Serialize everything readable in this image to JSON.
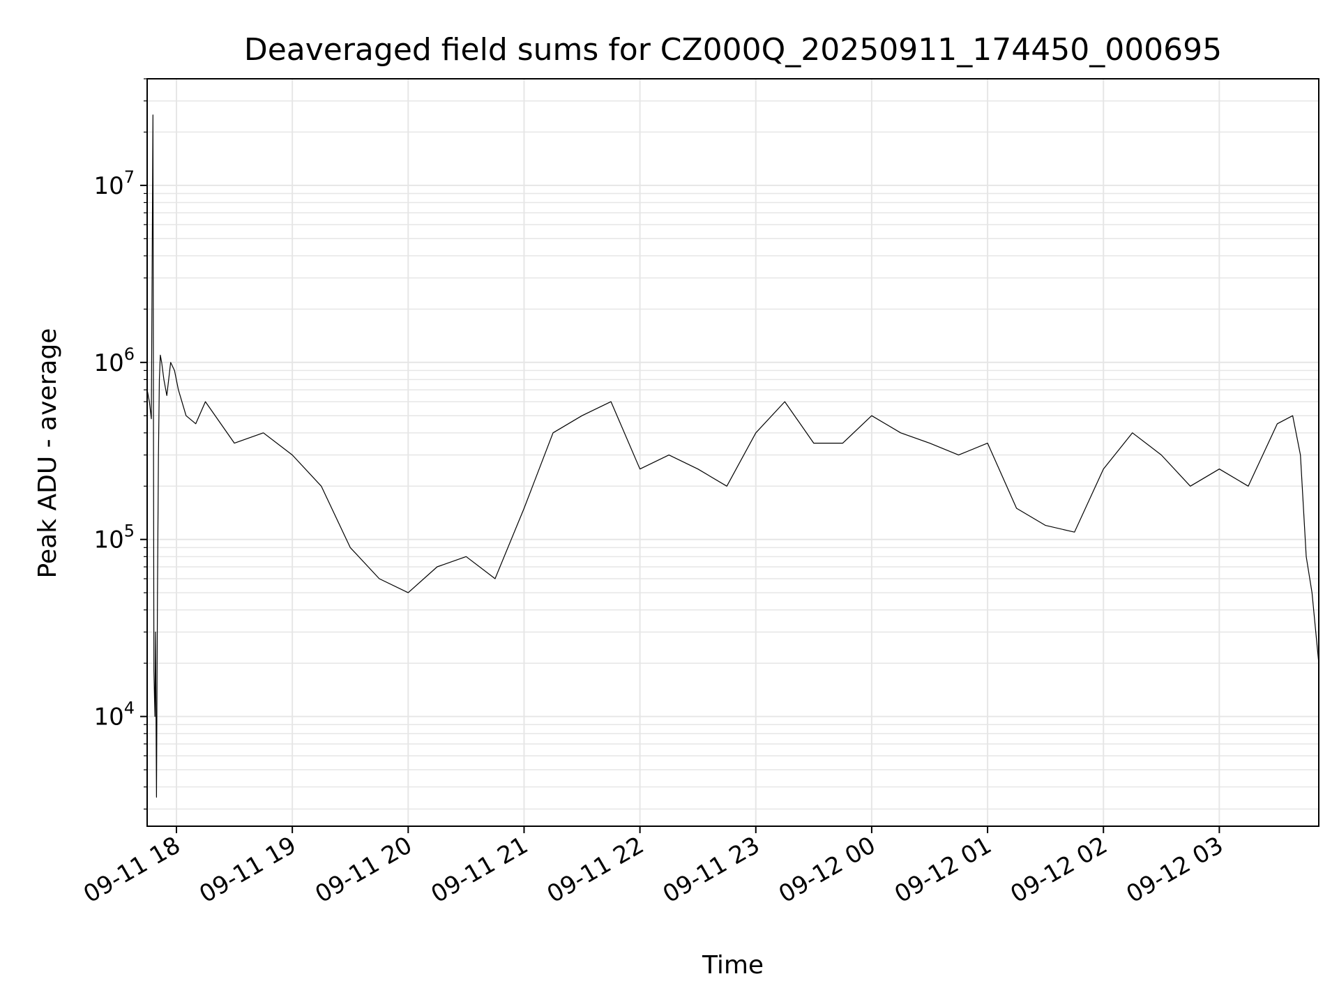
{
  "chart_data": {
    "type": "line",
    "title": "Deaveraged field sums for CZ000Q_20250911_174450_000695",
    "xlabel": "Time",
    "ylabel": "Peak ADU - average",
    "y_scale": "log",
    "y_tick_labels": [
      {
        "base": "10",
        "exp": "4",
        "value": 10000
      },
      {
        "base": "10",
        "exp": "5",
        "value": 100000
      },
      {
        "base": "10",
        "exp": "6",
        "value": 1000000
      },
      {
        "base": "10",
        "exp": "7",
        "value": 10000000
      }
    ],
    "ylim": [
      2400,
      40000000
    ],
    "xlim": [
      "2025-09-11 17:44:50",
      "2025-09-12 03:51:30"
    ],
    "x_tick_labels": [
      {
        "label": "09-11 18",
        "time": "2025-09-11 18:00:00"
      },
      {
        "label": "09-11 19",
        "time": "2025-09-11 19:00:00"
      },
      {
        "label": "09-11 20",
        "time": "2025-09-11 20:00:00"
      },
      {
        "label": "09-11 21",
        "time": "2025-09-11 21:00:00"
      },
      {
        "label": "09-11 22",
        "time": "2025-09-11 22:00:00"
      },
      {
        "label": "09-11 23",
        "time": "2025-09-11 23:00:00"
      },
      {
        "label": "09-12 00",
        "time": "2025-09-12 00:00:00"
      },
      {
        "label": "09-12 01",
        "time": "2025-09-12 01:00:00"
      },
      {
        "label": "09-12 02",
        "time": "2025-09-12 02:00:00"
      },
      {
        "label": "09-12 03",
        "time": "2025-09-12 03:00:00"
      }
    ],
    "grid": true,
    "legend": "none",
    "colors": {
      "line": "#000000",
      "grid": "#e6e6e6",
      "axes": "#000000",
      "background": "#ffffff"
    },
    "series": [
      {
        "x": [
          "2025-09-11 17:44:50",
          "2025-09-11 17:46:00",
          "2025-09-11 17:47:00",
          "2025-09-11 17:47:50",
          "2025-09-11 17:48:20",
          "2025-09-11 17:48:50",
          "2025-09-11 17:49:10",
          "2025-09-11 17:49:40",
          "2025-09-11 17:50:10",
          "2025-09-11 17:50:40",
          "2025-09-11 17:51:10",
          "2025-09-11 17:51:40",
          "2025-09-11 17:52:20",
          "2025-09-11 17:53:30",
          "2025-09-11 17:55:00",
          "2025-09-11 17:57:00",
          "2025-09-11 17:59:00",
          "2025-09-11 18:01:00",
          "2025-09-11 18:05:00",
          "2025-09-11 18:10:00",
          "2025-09-11 18:15:00",
          "2025-09-11 18:30:00",
          "2025-09-11 18:45:00",
          "2025-09-11 19:00:00",
          "2025-09-11 19:15:00",
          "2025-09-11 19:30:00",
          "2025-09-11 19:45:00",
          "2025-09-11 20:00:00",
          "2025-09-11 20:15:00",
          "2025-09-11 20:30:00",
          "2025-09-11 20:45:00",
          "2025-09-11 21:00:00",
          "2025-09-11 21:15:00",
          "2025-09-11 21:30:00",
          "2025-09-11 21:45:00",
          "2025-09-11 22:00:00",
          "2025-09-11 22:15:00",
          "2025-09-11 22:30:00",
          "2025-09-11 22:45:00",
          "2025-09-11 23:00:00",
          "2025-09-11 23:15:00",
          "2025-09-11 23:30:00",
          "2025-09-11 23:45:00",
          "2025-09-12 00:00:00",
          "2025-09-12 00:15:00",
          "2025-09-12 00:30:00",
          "2025-09-12 00:45:00",
          "2025-09-12 01:00:00",
          "2025-09-12 01:15:00",
          "2025-09-12 01:30:00",
          "2025-09-12 01:45:00",
          "2025-09-12 02:00:00",
          "2025-09-12 02:15:00",
          "2025-09-12 02:30:00",
          "2025-09-12 02:45:00",
          "2025-09-12 03:00:00",
          "2025-09-12 03:15:00",
          "2025-09-12 03:30:00",
          "2025-09-12 03:38:00",
          "2025-09-12 03:42:00",
          "2025-09-12 03:45:00",
          "2025-09-12 03:48:00",
          "2025-09-12 03:51:30"
        ],
        "y": [
          700000,
          600000,
          480000,
          25000000,
          18000,
          10000,
          30000,
          3500,
          50000,
          300000,
          800000,
          1100000,
          1000000,
          800000,
          650000,
          1000000,
          900000,
          700000,
          500000,
          450000,
          600000,
          350000,
          400000,
          300000,
          200000,
          90000,
          60000,
          50000,
          70000,
          80000,
          60000,
          150000,
          400000,
          500000,
          600000,
          250000,
          300000,
          250000,
          200000,
          400000,
          600000,
          350000,
          350000,
          500000,
          400000,
          350000,
          300000,
          350000,
          150000,
          120000,
          110000,
          250000,
          400000,
          300000,
          200000,
          250000,
          200000,
          450000,
          500000,
          300000,
          80000,
          50000,
          20000
        ]
      }
    ]
  }
}
